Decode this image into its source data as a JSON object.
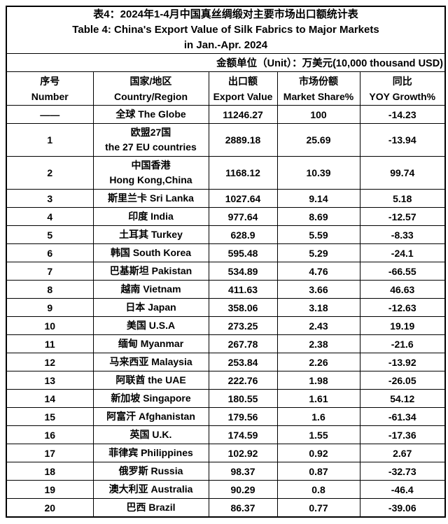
{
  "page": {
    "title_zh": "表4：2024年1-4月中国真丝绸缎对主要市场出口额统计表",
    "title_en_line1": "Table 4: China's Export Value of Silk Fabrics to Major Markets",
    "title_en_line2": "in Jan.-Apr. 2024",
    "unit_label": "金额单位（Unit）：万美元(10,000 thousand USD)"
  },
  "colors": {
    "text": "#000000",
    "border": "#000000",
    "background": "#ffffff"
  },
  "table": {
    "headers": [
      "序号\nNumber",
      "国家/地区\nCountry/Region",
      "出口额\nExport Value",
      "市场份额\nMarket Share%",
      "同比\nYOY Growth%"
    ],
    "rows": [
      {
        "number": "——",
        "country": "全球 The Globe",
        "export_value": "11246.27",
        "market_share": "100",
        "yoy_growth": "-14.23"
      },
      {
        "number": "1",
        "country": "欧盟27国\nthe 27 EU countries",
        "export_value": "2889.18",
        "market_share": "25.69",
        "yoy_growth": "-13.94"
      },
      {
        "number": "2",
        "country": "中国香港\nHong Kong,China",
        "export_value": "1168.12",
        "market_share": "10.39",
        "yoy_growth": "99.74"
      },
      {
        "number": "3",
        "country": "斯里兰卡 Sri Lanka",
        "export_value": "1027.64",
        "market_share": "9.14",
        "yoy_growth": "5.18"
      },
      {
        "number": "4",
        "country": "印度 India",
        "export_value": "977.64",
        "market_share": "8.69",
        "yoy_growth": "-12.57"
      },
      {
        "number": "5",
        "country": "土耳其 Turkey",
        "export_value": "628.9",
        "market_share": "5.59",
        "yoy_growth": "-8.33"
      },
      {
        "number": "6",
        "country": "韩国 South Korea",
        "export_value": "595.48",
        "market_share": "5.29",
        "yoy_growth": "-24.1"
      },
      {
        "number": "7",
        "country": "巴基斯坦 Pakistan",
        "export_value": "534.89",
        "market_share": "4.76",
        "yoy_growth": "-66.55"
      },
      {
        "number": "8",
        "country": "越南 Vietnam",
        "export_value": "411.63",
        "market_share": "3.66",
        "yoy_growth": "46.63"
      },
      {
        "number": "9",
        "country": "日本 Japan",
        "export_value": "358.06",
        "market_share": "3.18",
        "yoy_growth": "-12.63"
      },
      {
        "number": "10",
        "country": "美国 U.S.A",
        "export_value": "273.25",
        "market_share": "2.43",
        "yoy_growth": "19.19"
      },
      {
        "number": "11",
        "country": "缅甸 Myanmar",
        "export_value": "267.78",
        "market_share": "2.38",
        "yoy_growth": "-21.6"
      },
      {
        "number": "12",
        "country": "马来西亚 Malaysia",
        "export_value": "253.84",
        "market_share": "2.26",
        "yoy_growth": "-13.92"
      },
      {
        "number": "13",
        "country": "阿联酋 the UAE",
        "export_value": "222.76",
        "market_share": "1.98",
        "yoy_growth": "-26.05"
      },
      {
        "number": "14",
        "country": "新加坡 Singapore",
        "export_value": "180.55",
        "market_share": "1.61",
        "yoy_growth": "54.12"
      },
      {
        "number": "15",
        "country": "阿富汗 Afghanistan",
        "export_value": "179.56",
        "market_share": "1.6",
        "yoy_growth": "-61.34"
      },
      {
        "number": "16",
        "country": "英国 U.K.",
        "export_value": "174.59",
        "market_share": "1.55",
        "yoy_growth": "-17.36"
      },
      {
        "number": "17",
        "country": "菲律宾 Philippines",
        "export_value": "102.92",
        "market_share": "0.92",
        "yoy_growth": "2.67"
      },
      {
        "number": "18",
        "country": "俄罗斯 Russia",
        "export_value": "98.37",
        "market_share": "0.87",
        "yoy_growth": "-32.73"
      },
      {
        "number": "19",
        "country": "澳大利亚 Australia",
        "export_value": "90.29",
        "market_share": "0.8",
        "yoy_growth": "-46.4"
      },
      {
        "number": "20",
        "country": "巴西 Brazil",
        "export_value": "86.37",
        "market_share": "0.77",
        "yoy_growth": "-39.06"
      }
    ]
  }
}
